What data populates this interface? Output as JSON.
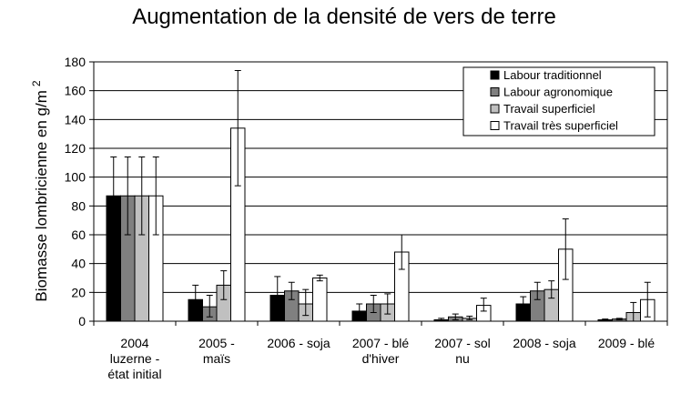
{
  "chart_data": {
    "type": "bar",
    "title": "Augmentation de la densité de vers de terre",
    "ylabel": "Biomasse lombricienne en g/m",
    "ylabel_sup": "2",
    "ylim": [
      0,
      180
    ],
    "yticks": [
      0,
      20,
      40,
      60,
      80,
      100,
      120,
      140,
      160,
      180
    ],
    "grid": true,
    "legend_position": "top-right",
    "categories": [
      [
        "2004",
        "luzerne -",
        "état initial"
      ],
      [
        "2005 -",
        "maïs"
      ],
      [
        "2006 - soja"
      ],
      [
        "2007 - blé",
        "d'hiver"
      ],
      [
        "2007 - sol",
        "nu"
      ],
      [
        "2008 - soja"
      ],
      [
        "2009 - blé"
      ]
    ],
    "series": [
      {
        "name": "Labour traditionnel",
        "color": "#000000",
        "values": [
          87,
          15,
          18,
          7,
          1,
          12,
          1
        ],
        "error_low": [
          60,
          6,
          5,
          2,
          0.5,
          7,
          0.5
        ],
        "error_high": [
          114,
          25,
          31,
          12,
          2,
          17,
          1.5
        ]
      },
      {
        "name": "Labour agronomique",
        "color": "#808080",
        "values": [
          87,
          10,
          21,
          12,
          3,
          21,
          1.5
        ],
        "error_low": [
          60,
          3,
          15,
          6,
          1,
          15,
          1
        ],
        "error_high": [
          114,
          18,
          27,
          18,
          5,
          27,
          2
        ]
      },
      {
        "name": "Travail superficiel",
        "color": "#c0c0c0",
        "values": [
          87,
          25,
          12,
          12,
          2,
          22,
          6
        ],
        "error_low": [
          60,
          15,
          4,
          5,
          1,
          16,
          0
        ],
        "error_high": [
          114,
          35,
          22,
          19,
          3.5,
          28,
          13
        ]
      },
      {
        "name": "Travail très superficiel",
        "color": "#ffffff",
        "values": [
          87,
          134,
          30,
          48,
          11,
          50,
          15
        ],
        "error_low": [
          60,
          94,
          28,
          36,
          7,
          29,
          3
        ],
        "error_high": [
          114,
          174,
          32,
          60,
          16,
          71,
          27
        ]
      }
    ]
  }
}
